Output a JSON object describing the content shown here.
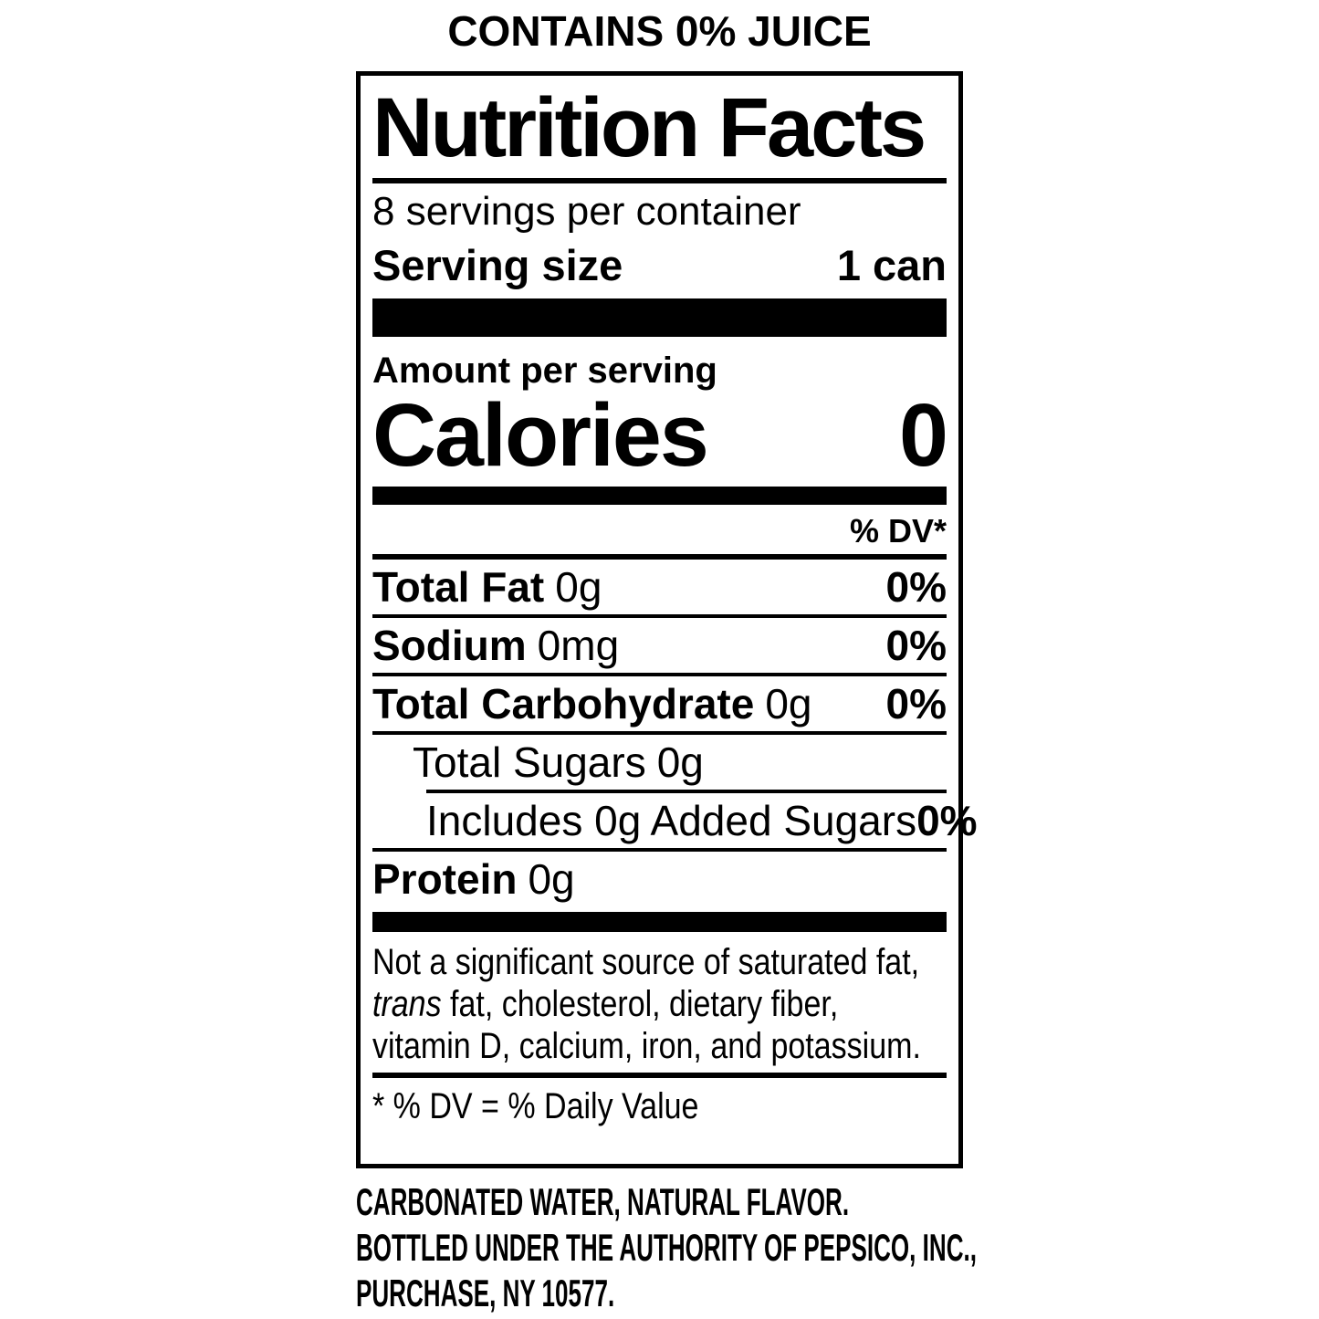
{
  "header": {
    "contains": "CONTAINS 0% JUICE"
  },
  "label": {
    "title": "Nutrition Facts",
    "servings_per_container": "8 servings per container",
    "serving_size_label": "Serving size",
    "serving_size_value": "1 can",
    "amount_per_serving": "Amount per serving",
    "calories_label": "Calories",
    "calories_value": "0",
    "dv_header": "% DV*",
    "rows": [
      {
        "label": "Total Fat",
        "qty": "0g",
        "dv": "0%"
      },
      {
        "label": "Sodium",
        "qty": "0mg",
        "dv": "0%"
      },
      {
        "label": "Total Carbohydrate",
        "qty": "0g",
        "dv": "0%"
      },
      {
        "label": "Total Sugars",
        "qty": "0g",
        "dv": ""
      },
      {
        "label": "Includes 0g Added Sugars",
        "qty": "",
        "dv": "0%"
      },
      {
        "label": "Protein",
        "qty": "0g",
        "dv": ""
      }
    ],
    "footnote": {
      "line1": "Not a significant source of saturated fat,",
      "line2_italic": "trans",
      "line2_rest": " fat, cholesterol, dietary fiber,",
      "line3": "vitamin D, calcium, iron, and potassium."
    },
    "dv_note": "* % DV = % Daily Value"
  },
  "footer": {
    "line1": "CARBONATED WATER, NATURAL FLAVOR.",
    "line2": "BOTTLED UNDER THE AUTHORITY OF PEPSICO, INC.,",
    "line3": "PURCHASE, NY 10577."
  },
  "colors": {
    "ink": "#000000",
    "background": "#ffffff"
  }
}
